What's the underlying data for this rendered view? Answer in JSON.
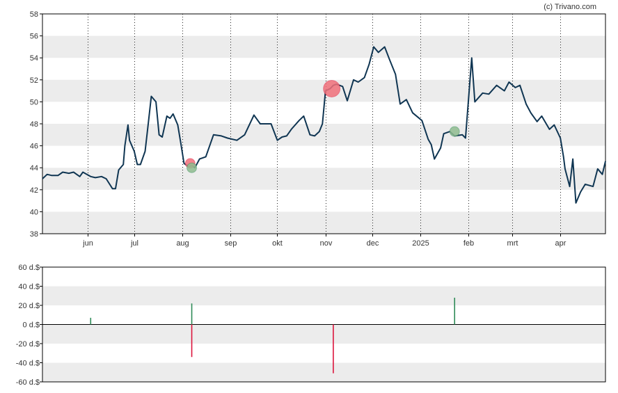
{
  "credit": "(c) Trivano.com",
  "colors": {
    "line": "#0f3552",
    "band": "#ececec",
    "buy": "#2e8b57",
    "sell": "#dc143c",
    "buy_marker": "#8fbc8f",
    "sell_marker": "#f0707a",
    "axis": "#000000"
  },
  "chart_data": [
    {
      "type": "line",
      "name": "price",
      "ylim": [
        38,
        58
      ],
      "yticks": [
        38,
        40,
        42,
        44,
        46,
        48,
        50,
        52,
        54,
        56,
        58
      ],
      "ytick_labels": [
        "38",
        "40",
        "42",
        "44",
        "46",
        "48",
        "50",
        "52",
        "54",
        "56",
        "58"
      ],
      "xlim": [
        "2024-05-03",
        "2025-04-30"
      ],
      "xticks": [
        {
          "date": "2024-06-01",
          "label": "jun"
        },
        {
          "date": "2024-07-01",
          "label": "jul"
        },
        {
          "date": "2024-08-01",
          "label": "aug"
        },
        {
          "date": "2024-09-01",
          "label": "sep"
        },
        {
          "date": "2024-10-01",
          "label": "okt"
        },
        {
          "date": "2024-11-01",
          "label": "nov"
        },
        {
          "date": "2024-12-01",
          "label": "dec"
        },
        {
          "date": "2025-01-01",
          "label": "2025"
        },
        {
          "date": "2025-02-01",
          "label": "feb"
        },
        {
          "date": "2025-03-01",
          "label": "mrt"
        },
        {
          "date": "2025-04-01",
          "label": "apr"
        }
      ],
      "grid": "vertical dotted at month ticks, alternating horizontal bands",
      "series": [
        {
          "x": [
            "2024-05-03",
            "2024-05-06",
            "2024-05-09",
            "2024-05-13",
            "2024-05-16",
            "2024-05-20",
            "2024-05-23",
            "2024-05-27",
            "2024-05-29",
            "2024-06-03",
            "2024-06-06",
            "2024-06-10",
            "2024-06-13",
            "2024-06-17",
            "2024-06-19",
            "2024-06-21",
            "2024-06-24",
            "2024-06-25",
            "2024-06-27",
            "2024-06-28",
            "2024-07-01",
            "2024-07-03",
            "2024-07-05",
            "2024-07-08",
            "2024-07-10",
            "2024-07-12",
            "2024-07-15",
            "2024-07-17",
            "2024-07-19",
            "2024-07-22",
            "2024-07-24",
            "2024-07-26",
            "2024-07-29",
            "2024-07-31",
            "2024-08-02",
            "2024-08-05",
            "2024-08-07",
            "2024-08-09",
            "2024-08-12",
            "2024-08-16",
            "2024-08-21",
            "2024-08-26",
            "2024-08-30",
            "2024-09-05",
            "2024-09-10",
            "2024-09-16",
            "2024-09-20",
            "2024-09-24",
            "2024-09-27",
            "2024-10-01",
            "2024-10-04",
            "2024-10-07",
            "2024-10-10",
            "2024-10-15",
            "2024-10-18",
            "2024-10-22",
            "2024-10-25",
            "2024-10-28",
            "2024-10-30",
            "2024-11-01",
            "2024-11-04",
            "2024-11-06",
            "2024-11-08",
            "2024-11-12",
            "2024-11-15",
            "2024-11-19",
            "2024-11-22",
            "2024-11-26",
            "2024-11-29",
            "2024-12-02",
            "2024-12-05",
            "2024-12-09",
            "2024-12-12",
            "2024-12-16",
            "2024-12-19",
            "2024-12-23",
            "2024-12-27",
            "2025-01-02",
            "2025-01-06",
            "2025-01-08",
            "2025-01-10",
            "2025-01-14",
            "2025-01-16",
            "2025-01-20",
            "2025-01-23",
            "2025-01-28",
            "2025-01-30",
            "2025-02-03",
            "2025-02-05",
            "2025-02-10",
            "2025-02-14",
            "2025-02-19",
            "2025-02-24",
            "2025-02-27",
            "2025-03-03",
            "2025-03-06",
            "2025-03-10",
            "2025-03-13",
            "2025-03-17",
            "2025-03-20",
            "2025-03-25",
            "2025-03-28",
            "2025-04-01",
            "2025-04-03",
            "2025-04-04",
            "2025-04-07",
            "2025-04-09",
            "2025-04-11",
            "2025-04-14",
            "2025-04-17",
            "2025-04-22",
            "2025-04-25",
            "2025-04-28",
            "2025-04-30"
          ],
          "y": [
            43.0,
            43.4,
            43.3,
            43.3,
            43.6,
            43.5,
            43.6,
            43.2,
            43.6,
            43.2,
            43.1,
            43.2,
            43.0,
            42.1,
            42.1,
            43.8,
            44.3,
            46.0,
            47.9,
            46.5,
            45.5,
            44.3,
            44.3,
            45.5,
            48.0,
            50.5,
            50.0,
            47.0,
            46.8,
            48.7,
            48.5,
            48.9,
            47.9,
            46.2,
            44.4,
            44.1,
            44.2,
            44.0,
            44.8,
            45.0,
            47.0,
            46.9,
            46.7,
            46.5,
            47.0,
            48.8,
            48.0,
            48.0,
            48.0,
            46.5,
            46.8,
            46.9,
            47.5,
            48.3,
            48.7,
            47.0,
            46.9,
            47.3,
            48.0,
            51.0,
            51.2,
            51.5,
            51.6,
            51.4,
            50.1,
            52.0,
            51.8,
            52.2,
            53.4,
            55.0,
            54.5,
            55.0,
            53.9,
            52.5,
            49.8,
            50.2,
            49.0,
            48.3,
            46.6,
            46.1,
            44.8,
            45.8,
            47.1,
            47.3,
            46.9,
            47.0,
            46.7,
            54.0,
            50.0,
            50.8,
            50.7,
            51.5,
            51.0,
            51.8,
            51.3,
            51.5,
            49.8,
            49.0,
            48.2,
            48.7,
            47.5,
            47.9,
            46.7,
            45.0,
            43.9,
            42.3,
            44.8,
            40.8,
            41.8,
            42.5,
            42.3,
            43.9,
            43.4,
            44.6
          ],
          "markers": [
            {
              "date": "2024-08-06",
              "value": 44.4,
              "kind": "sell",
              "size": "small"
            },
            {
              "date": "2024-08-07",
              "value": 44.0,
              "kind": "buy",
              "size": "small"
            },
            {
              "date": "2024-11-05",
              "value": 51.2,
              "kind": "sell",
              "size": "large"
            },
            {
              "date": "2025-01-23",
              "value": 47.3,
              "kind": "buy",
              "size": "small"
            }
          ]
        }
      ]
    },
    {
      "type": "bar",
      "name": "transactions",
      "ylim": [
        -60,
        60
      ],
      "yticks": [
        -60,
        -40,
        -20,
        0,
        20,
        40,
        60
      ],
      "ytick_labels": [
        "-60 d.$",
        "-40 d.$",
        "-20 d.$",
        "0 d.$",
        "20 d.$",
        "40 d.$",
        "60 d.$"
      ],
      "bars": [
        {
          "date": "2024-06-03",
          "value": 7,
          "kind": "buy"
        },
        {
          "date": "2024-08-07",
          "value": 22,
          "kind": "buy"
        },
        {
          "date": "2024-08-07",
          "value": -34,
          "kind": "sell"
        },
        {
          "date": "2024-11-06",
          "value": -51,
          "kind": "sell"
        },
        {
          "date": "2025-01-23",
          "value": 28,
          "kind": "buy"
        }
      ]
    }
  ]
}
